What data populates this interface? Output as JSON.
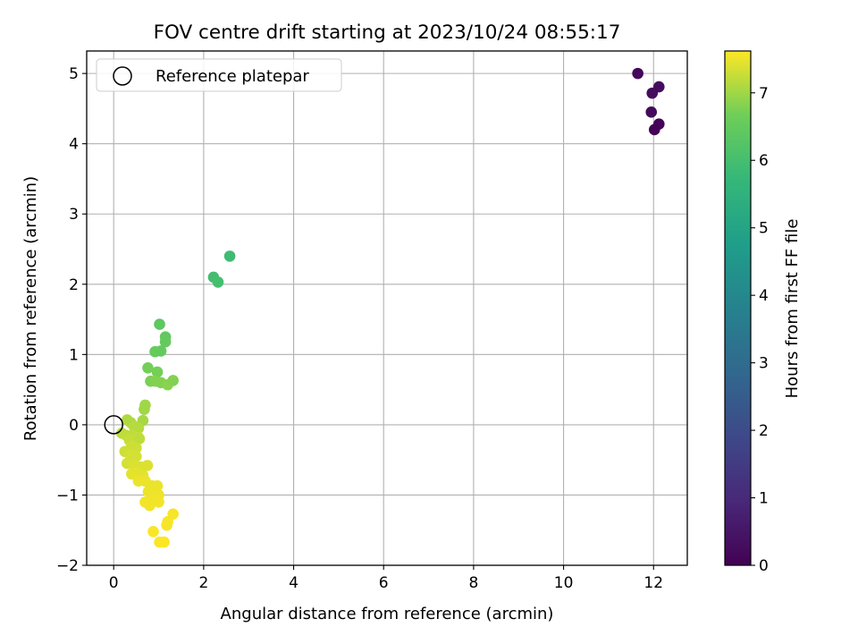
{
  "chart_data": {
    "type": "scatter",
    "title": "FOV centre drift starting at 2023/10/24 08:55:17",
    "xlabel": "Angular distance from reference (arcmin)",
    "ylabel": "Rotation from reference (arcmin)",
    "xlim": [
      -0.6,
      12.75
    ],
    "ylim": [
      -2.0,
      5.32
    ],
    "xticks": [
      0,
      2,
      4,
      6,
      8,
      10,
      12
    ],
    "yticks": [
      -2,
      -1,
      0,
      1,
      2,
      3,
      4,
      5
    ],
    "grid": true,
    "legend": {
      "placement": "top-left",
      "entries": [
        "Reference platepar"
      ]
    },
    "reference_point": {
      "x": 0,
      "y": 0
    },
    "colorbar": {
      "label": "Hours from first FF file",
      "range": [
        0,
        7.62
      ],
      "ticks": [
        0,
        1,
        2,
        3,
        4,
        5,
        6,
        7
      ],
      "colormap": "viridis"
    },
    "series": [
      {
        "points": [
          {
            "x": 11.65,
            "y": 5.0,
            "c": 0.15
          },
          {
            "x": 12.12,
            "y": 4.81,
            "c": 0.3
          },
          {
            "x": 11.97,
            "y": 4.72,
            "c": 0.25
          },
          {
            "x": 11.95,
            "y": 4.45,
            "c": 0.2
          },
          {
            "x": 12.12,
            "y": 4.28,
            "c": 0.1
          },
          {
            "x": 12.02,
            "y": 4.2,
            "c": 0.05
          },
          {
            "x": 2.58,
            "y": 2.4,
            "c": 5.9
          },
          {
            "x": 2.22,
            "y": 2.1,
            "c": 5.95
          },
          {
            "x": 2.32,
            "y": 2.03,
            "c": 6.0
          },
          {
            "x": 1.02,
            "y": 1.43,
            "c": 6.4
          },
          {
            "x": 1.15,
            "y": 1.25,
            "c": 6.45
          },
          {
            "x": 1.15,
            "y": 1.18,
            "c": 6.5
          },
          {
            "x": 0.92,
            "y": 1.04,
            "c": 6.55
          },
          {
            "x": 1.05,
            "y": 1.05,
            "c": 6.5
          },
          {
            "x": 0.76,
            "y": 0.81,
            "c": 6.7
          },
          {
            "x": 0.97,
            "y": 0.75,
            "c": 6.7
          },
          {
            "x": 0.82,
            "y": 0.62,
            "c": 6.75
          },
          {
            "x": 0.93,
            "y": 0.62,
            "c": 6.8
          },
          {
            "x": 1.05,
            "y": 0.6,
            "c": 6.8
          },
          {
            "x": 1.2,
            "y": 0.57,
            "c": 6.85
          },
          {
            "x": 1.32,
            "y": 0.63,
            "c": 6.8
          },
          {
            "x": 0.7,
            "y": 0.28,
            "c": 7.0
          },
          {
            "x": 0.68,
            "y": 0.22,
            "c": 7.0
          },
          {
            "x": 0.65,
            "y": 0.06,
            "c": 7.05
          },
          {
            "x": 0.3,
            "y": 0.07,
            "c": 7.1
          },
          {
            "x": 0.38,
            "y": 0.03,
            "c": 7.1
          },
          {
            "x": 0.45,
            "y": -0.02,
            "c": 7.15
          },
          {
            "x": 0.55,
            "y": -0.05,
            "c": 7.15
          },
          {
            "x": 0.18,
            "y": -0.12,
            "c": 7.2
          },
          {
            "x": 0.28,
            "y": -0.15,
            "c": 7.2
          },
          {
            "x": 0.42,
            "y": -0.15,
            "c": 7.2
          },
          {
            "x": 0.35,
            "y": -0.22,
            "c": 7.25
          },
          {
            "x": 0.55,
            "y": -0.18,
            "c": 7.25
          },
          {
            "x": 0.57,
            "y": -0.2,
            "c": 7.2
          },
          {
            "x": 0.4,
            "y": -0.3,
            "c": 7.3
          },
          {
            "x": 0.5,
            "y": -0.33,
            "c": 7.3
          },
          {
            "x": 0.25,
            "y": -0.38,
            "c": 7.3
          },
          {
            "x": 0.37,
            "y": -0.43,
            "c": 7.35
          },
          {
            "x": 0.5,
            "y": -0.45,
            "c": 7.35
          },
          {
            "x": 0.3,
            "y": -0.55,
            "c": 7.35
          },
          {
            "x": 0.45,
            "y": -0.58,
            "c": 7.4
          },
          {
            "x": 0.6,
            "y": -0.6,
            "c": 7.4
          },
          {
            "x": 0.75,
            "y": -0.58,
            "c": 7.4
          },
          {
            "x": 0.4,
            "y": -0.7,
            "c": 7.45
          },
          {
            "x": 0.52,
            "y": -0.68,
            "c": 7.45
          },
          {
            "x": 0.65,
            "y": -0.72,
            "c": 7.45
          },
          {
            "x": 0.55,
            "y": -0.8,
            "c": 7.5
          },
          {
            "x": 0.7,
            "y": -0.8,
            "c": 7.5
          },
          {
            "x": 0.85,
            "y": -0.87,
            "c": 7.5
          },
          {
            "x": 0.97,
            "y": -0.87,
            "c": 7.5
          },
          {
            "x": 0.77,
            "y": -0.95,
            "c": 7.5
          },
          {
            "x": 0.9,
            "y": -0.97,
            "c": 7.5
          },
          {
            "x": 1.0,
            "y": -1.0,
            "c": 7.52
          },
          {
            "x": 0.85,
            "y": -1.05,
            "c": 7.52
          },
          {
            "x": 0.95,
            "y": -1.08,
            "c": 7.55
          },
          {
            "x": 1.0,
            "y": -1.1,
            "c": 7.55
          },
          {
            "x": 0.7,
            "y": -1.1,
            "c": 7.55
          },
          {
            "x": 0.8,
            "y": -1.15,
            "c": 7.55
          },
          {
            "x": 1.2,
            "y": -1.38,
            "c": 7.58
          },
          {
            "x": 1.18,
            "y": -1.43,
            "c": 7.58
          },
          {
            "x": 1.32,
            "y": -1.27,
            "c": 7.58
          },
          {
            "x": 0.88,
            "y": -1.52,
            "c": 7.6
          },
          {
            "x": 1.02,
            "y": -1.67,
            "c": 7.6
          },
          {
            "x": 1.12,
            "y": -1.67,
            "c": 7.62
          }
        ]
      }
    ]
  }
}
